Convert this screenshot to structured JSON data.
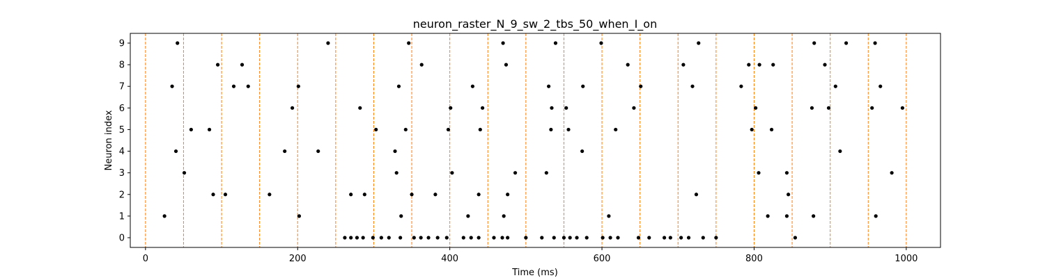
{
  "chart_data": {
    "type": "scatter",
    "title": "neuron_raster_N_9_sw_2_tbs_50_when_I_on",
    "xlabel": "Time (ms)",
    "ylabel": "Neuron index",
    "xlim": [
      -20,
      1045
    ],
    "ylim": [
      -0.45,
      9.45
    ],
    "x_ticks": [
      0,
      200,
      400,
      600,
      800,
      1000
    ],
    "y_ticks": [
      0,
      1,
      2,
      3,
      4,
      5,
      6,
      7,
      8,
      9
    ],
    "grid": false,
    "marker_color": "#000000",
    "vline_color": "#ff7f0e",
    "vlines_x": [
      0,
      50,
      100,
      150,
      200,
      250,
      300,
      350,
      400,
      450,
      500,
      550,
      600,
      650,
      700,
      750,
      800,
      850,
      900,
      950,
      1000
    ],
    "points": [
      [
        25,
        1
      ],
      [
        35,
        7
      ],
      [
        40,
        4
      ],
      [
        42,
        9
      ],
      [
        51,
        3
      ],
      [
        60,
        5
      ],
      [
        84,
        5
      ],
      [
        89,
        2
      ],
      [
        95,
        8
      ],
      [
        105,
        2
      ],
      [
        116,
        7
      ],
      [
        127,
        8
      ],
      [
        135,
        7
      ],
      [
        163,
        2
      ],
      [
        183,
        4
      ],
      [
        193,
        6
      ],
      [
        201,
        7
      ],
      [
        202,
        1
      ],
      [
        227,
        4
      ],
      [
        240,
        9
      ],
      [
        262,
        0
      ],
      [
        270,
        0
      ],
      [
        270,
        2
      ],
      [
        278,
        0
      ],
      [
        282,
        6
      ],
      [
        286,
        0
      ],
      [
        288,
        2
      ],
      [
        299,
        0
      ],
      [
        303,
        5
      ],
      [
        310,
        0
      ],
      [
        320,
        0
      ],
      [
        328,
        4
      ],
      [
        330,
        3
      ],
      [
        333,
        7
      ],
      [
        335,
        0
      ],
      [
        336,
        1
      ],
      [
        342,
        5
      ],
      [
        346,
        9
      ],
      [
        350,
        2
      ],
      [
        353,
        0
      ],
      [
        362,
        0
      ],
      [
        363,
        8
      ],
      [
        372,
        0
      ],
      [
        381,
        2
      ],
      [
        384,
        0
      ],
      [
        396,
        0
      ],
      [
        398,
        5
      ],
      [
        401,
        6
      ],
      [
        403,
        3
      ],
      [
        418,
        0
      ],
      [
        424,
        1
      ],
      [
        428,
        0
      ],
      [
        430,
        7
      ],
      [
        438,
        0
      ],
      [
        438,
        2
      ],
      [
        440,
        5
      ],
      [
        443,
        6
      ],
      [
        458,
        0
      ],
      [
        469,
        0
      ],
      [
        470,
        9
      ],
      [
        471,
        1
      ],
      [
        474,
        8
      ],
      [
        476,
        0
      ],
      [
        476,
        2
      ],
      [
        486,
        3
      ],
      [
        500,
        0
      ],
      [
        521,
        0
      ],
      [
        527,
        3
      ],
      [
        530,
        7
      ],
      [
        533,
        5
      ],
      [
        534,
        6
      ],
      [
        537,
        0
      ],
      [
        539,
        9
      ],
      [
        550,
        0
      ],
      [
        553,
        6
      ],
      [
        556,
        5
      ],
      [
        558,
        0
      ],
      [
        567,
        0
      ],
      [
        574,
        4
      ],
      [
        575,
        7
      ],
      [
        580,
        0
      ],
      [
        599,
        9
      ],
      [
        601,
        0
      ],
      [
        609,
        1
      ],
      [
        611,
        0
      ],
      [
        618,
        5
      ],
      [
        621,
        0
      ],
      [
        634,
        8
      ],
      [
        642,
        6
      ],
      [
        648,
        0
      ],
      [
        651,
        7
      ],
      [
        662,
        0
      ],
      [
        682,
        0
      ],
      [
        690,
        0
      ],
      [
        704,
        0
      ],
      [
        707,
        8
      ],
      [
        714,
        0
      ],
      [
        719,
        7
      ],
      [
        724,
        2
      ],
      [
        727,
        9
      ],
      [
        733,
        0
      ],
      [
        750,
        0
      ],
      [
        783,
        7
      ],
      [
        793,
        8
      ],
      [
        797,
        5
      ],
      [
        802,
        6
      ],
      [
        806,
        3
      ],
      [
        807,
        8
      ],
      [
        818,
        1
      ],
      [
        823,
        5
      ],
      [
        825,
        8
      ],
      [
        843,
        1
      ],
      [
        843,
        3
      ],
      [
        845,
        2
      ],
      [
        854,
        0
      ],
      [
        876,
        6
      ],
      [
        878,
        1
      ],
      [
        879,
        9
      ],
      [
        893,
        8
      ],
      [
        898,
        6
      ],
      [
        907,
        7
      ],
      [
        913,
        4
      ],
      [
        921,
        9
      ],
      [
        955,
        6
      ],
      [
        959,
        9
      ],
      [
        960,
        1
      ],
      [
        966,
        7
      ],
      [
        981,
        3
      ],
      [
        995,
        6
      ]
    ]
  }
}
